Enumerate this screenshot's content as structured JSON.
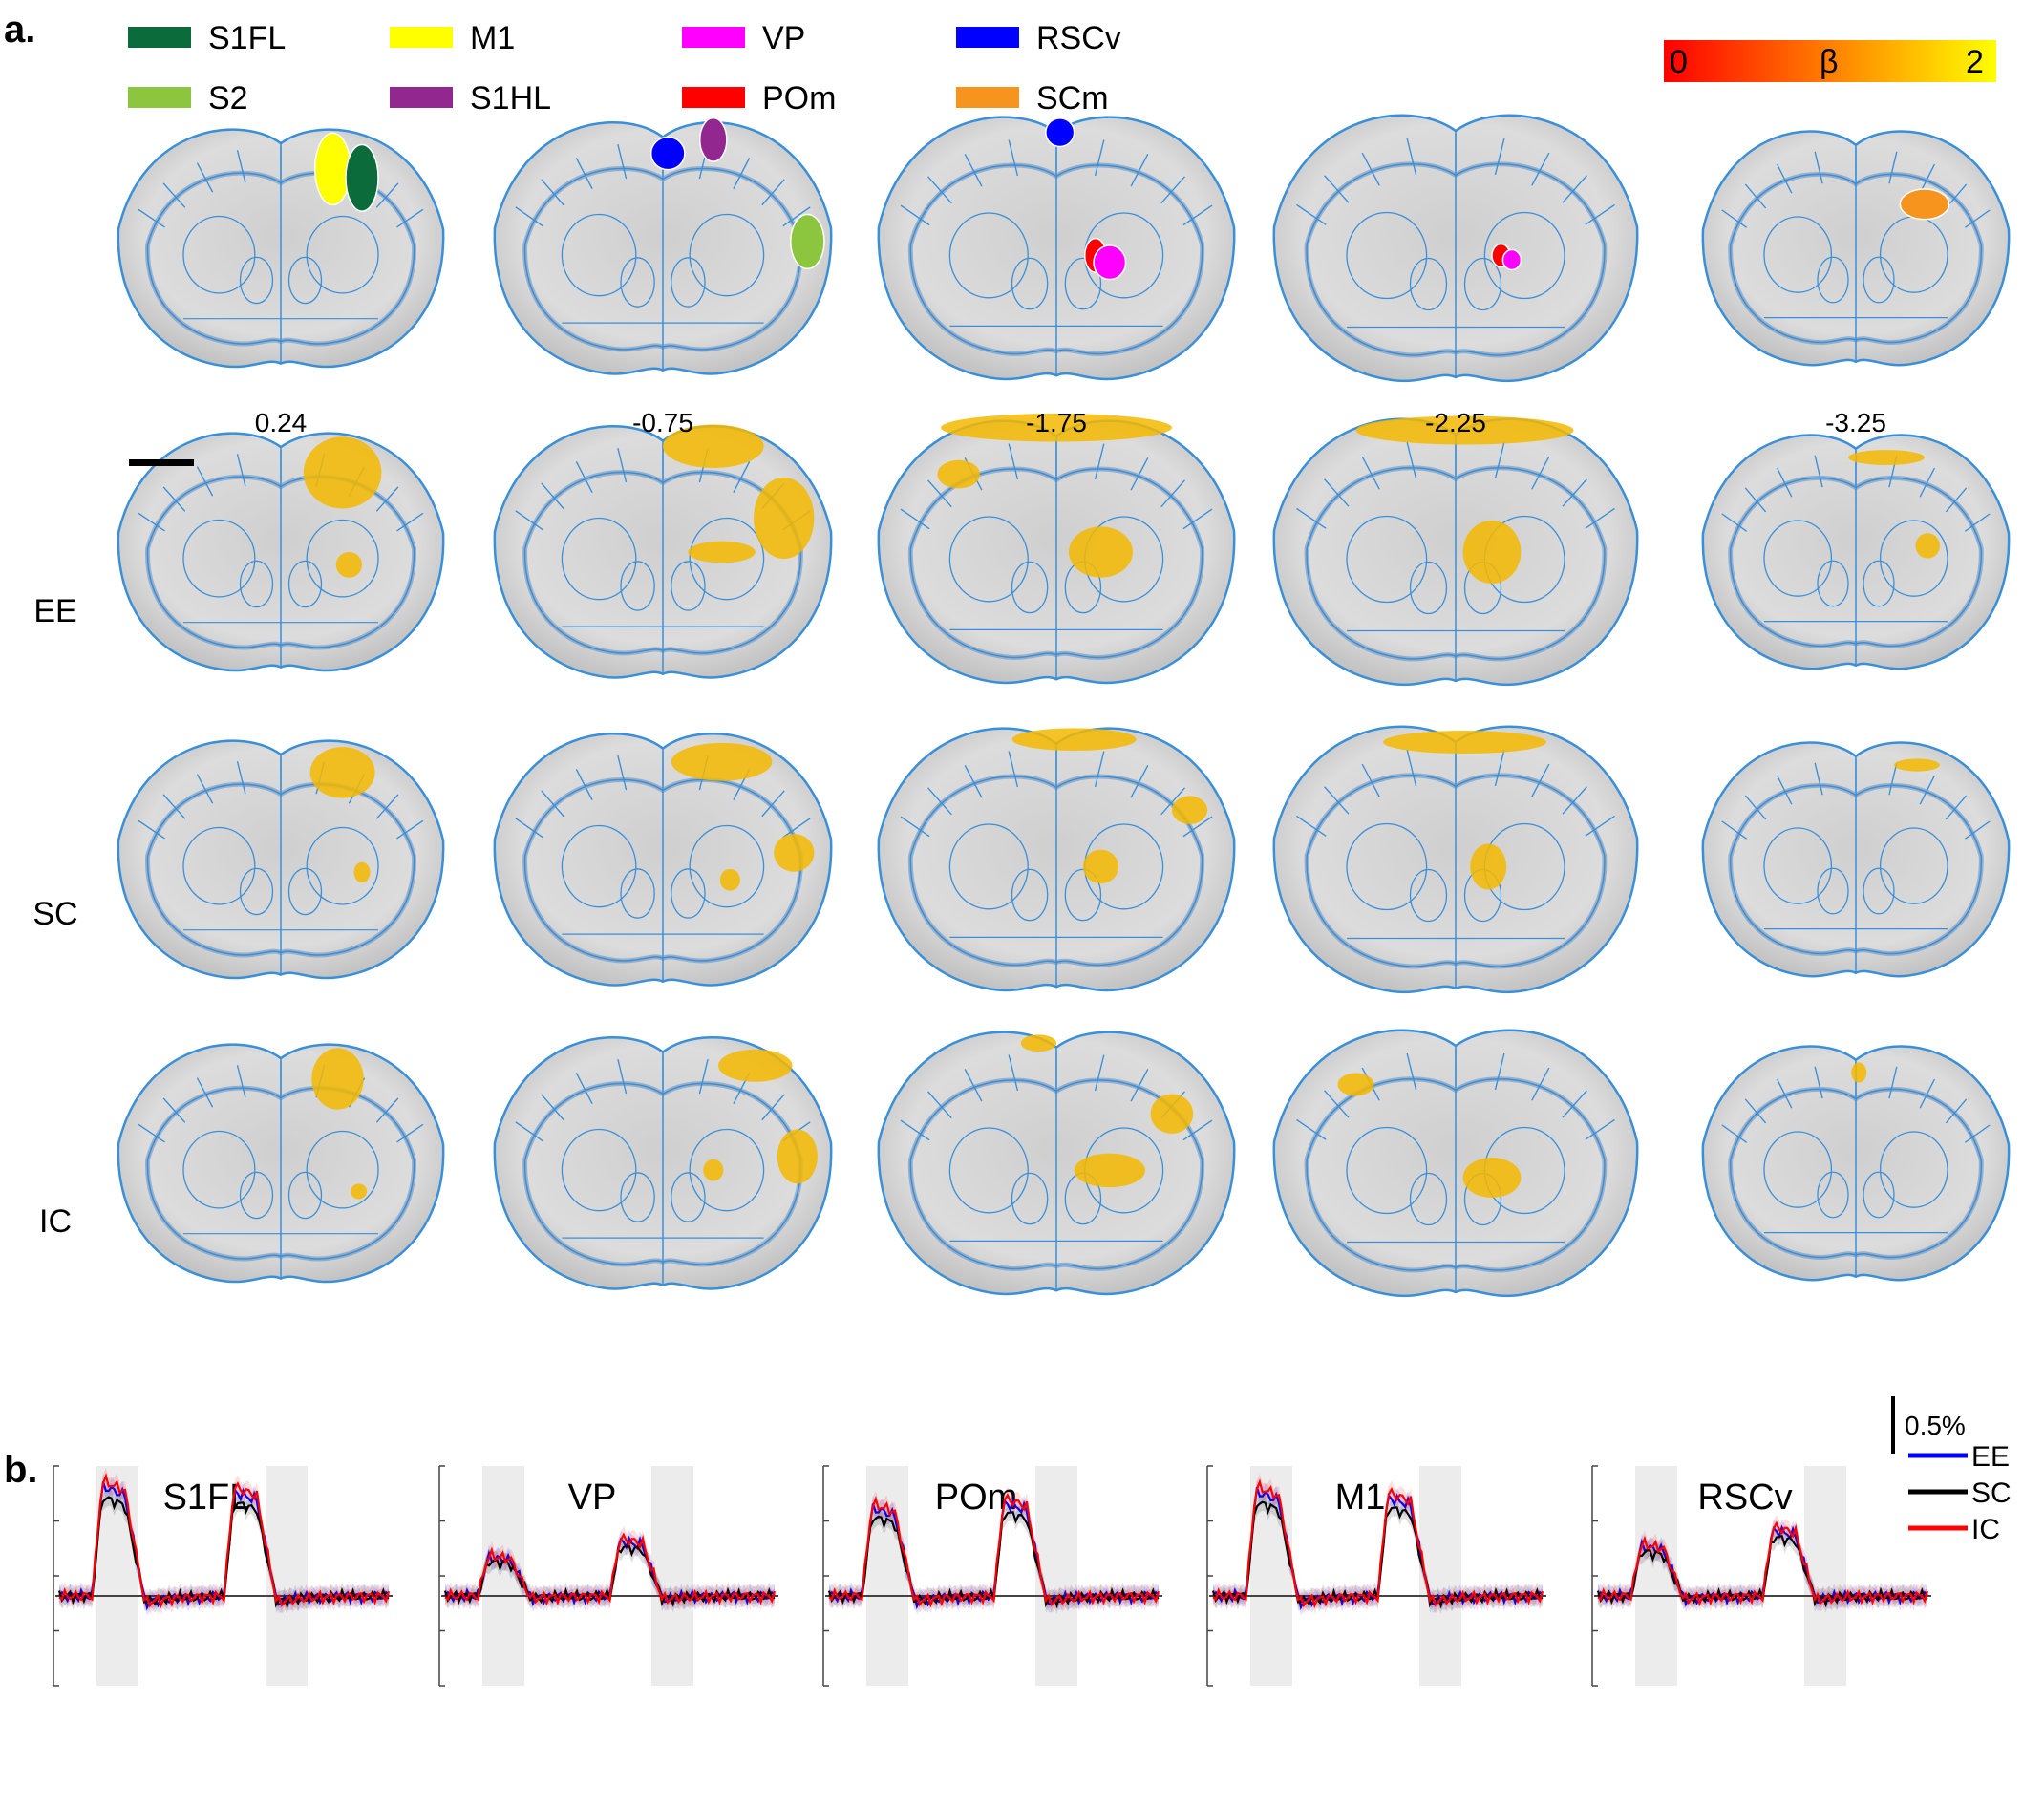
{
  "panel_a": {
    "label": "a.",
    "legend": [
      {
        "name": "S1FL",
        "color": "#0b6b3a"
      },
      {
        "name": "S2",
        "color": "#8cc63f"
      },
      {
        "name": "M1",
        "color": "#ffff00"
      },
      {
        "name": "S1HL",
        "color": "#92278f"
      },
      {
        "name": "VP",
        "color": "#ff00ff"
      },
      {
        "name": "POm",
        "color": "#ff0000"
      },
      {
        "name": "RSCv",
        "color": "#0000ff"
      },
      {
        "name": "SCm",
        "color": "#f7941d"
      }
    ],
    "colorbar": {
      "min_label": "0",
      "mid_label": "β",
      "max_label": "2",
      "color_low": "#ff0000",
      "color_high": "#ffff00"
    },
    "section_coords": [
      "0.24",
      "-0.75",
      "-1.75",
      "-2.25",
      "-3.25"
    ],
    "row_labels": [
      "EE",
      "SC",
      "IC"
    ],
    "outline_color": "#3a8fd9",
    "activation_color": "#f5b800"
  },
  "panel_b": {
    "label": "b.",
    "regions": [
      "S1FL",
      "VP",
      "POm",
      "M1",
      "RSCv"
    ],
    "legend": [
      {
        "name": "EE",
        "color": "#0000ff"
      },
      {
        "name": "SC",
        "color": "#000000"
      },
      {
        "name": "IC",
        "color": "#ff0000"
      }
    ],
    "scale_label": "0.5%"
  }
}
